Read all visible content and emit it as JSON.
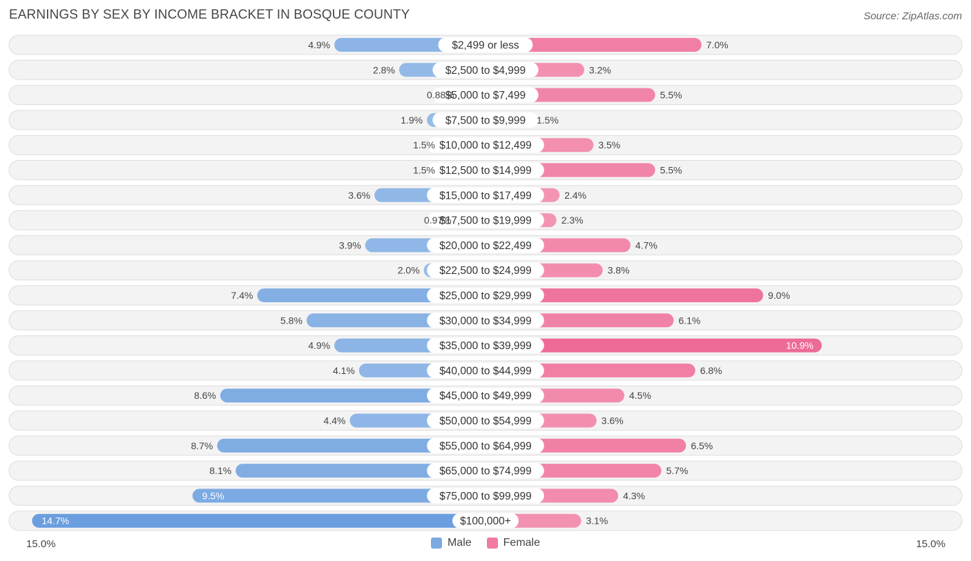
{
  "header": {
    "title": "EARNINGS BY SEX BY INCOME BRACKET IN BOSQUE COUNTY",
    "source": "Source: ZipAtlas.com"
  },
  "axis": {
    "left_label": "15.0%",
    "right_label": "15.0%"
  },
  "legend": {
    "male_label": "Male",
    "female_label": "Female",
    "male_color": "#7aaae0",
    "female_color": "#f07aa0"
  },
  "chart_data": {
    "type": "bar",
    "orientation": "horizontal-diverging",
    "title": "EARNINGS BY SEX BY INCOME BRACKET IN BOSQUE COUNTY",
    "xlim": [
      -15.0,
      15.0
    ],
    "unit": "%",
    "categories": [
      "$2,499 or less",
      "$2,500 to $4,999",
      "$5,000 to $7,499",
      "$7,500 to $9,999",
      "$10,000 to $12,499",
      "$12,500 to $14,999",
      "$15,000 to $17,499",
      "$17,500 to $19,999",
      "$20,000 to $22,499",
      "$22,500 to $24,999",
      "$25,000 to $29,999",
      "$30,000 to $34,999",
      "$35,000 to $39,999",
      "$40,000 to $44,999",
      "$45,000 to $49,999",
      "$50,000 to $54,999",
      "$55,000 to $64,999",
      "$65,000 to $74,999",
      "$75,000 to $99,999",
      "$100,000+"
    ],
    "series": [
      {
        "name": "Male",
        "values": [
          4.9,
          2.8,
          0.88,
          1.9,
          1.5,
          1.5,
          3.6,
          0.97,
          3.9,
          2.0,
          7.4,
          5.8,
          4.9,
          4.1,
          8.6,
          4.4,
          8.7,
          8.1,
          9.5,
          14.7
        ],
        "labels": [
          "4.9%",
          "2.8%",
          "0.88%",
          "1.9%",
          "1.5%",
          "1.5%",
          "3.6%",
          "0.97%",
          "3.9%",
          "2.0%",
          "7.4%",
          "5.8%",
          "4.9%",
          "4.1%",
          "8.6%",
          "4.4%",
          "8.7%",
          "8.1%",
          "9.5%",
          "14.7%"
        ]
      },
      {
        "name": "Female",
        "values": [
          7.0,
          3.2,
          5.5,
          1.5,
          3.5,
          5.5,
          2.4,
          2.3,
          4.7,
          3.8,
          9.0,
          6.1,
          10.9,
          6.8,
          4.5,
          3.6,
          6.5,
          5.7,
          4.3,
          3.1
        ],
        "labels": [
          "7.0%",
          "3.2%",
          "5.5%",
          "1.5%",
          "3.5%",
          "5.5%",
          "2.4%",
          "2.3%",
          "4.7%",
          "3.8%",
          "9.0%",
          "6.1%",
          "10.9%",
          "6.8%",
          "4.5%",
          "3.6%",
          "6.5%",
          "5.7%",
          "4.3%",
          "3.1%"
        ]
      }
    ]
  }
}
